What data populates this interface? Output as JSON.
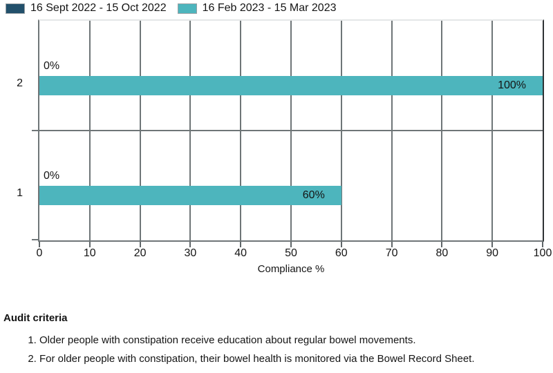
{
  "chart_data": {
    "type": "bar",
    "orientation": "horizontal",
    "categories": [
      "2",
      "1"
    ],
    "series": [
      {
        "name": "16 Sept 2022 - 15 Oct 2022",
        "color": "#22506b",
        "values": [
          0,
          0
        ],
        "labels": [
          "0%",
          "0%"
        ]
      },
      {
        "name": "16 Feb 2023 - 15 Mar 2023",
        "color": "#4db5bd",
        "values": [
          100,
          60
        ],
        "labels": [
          "100%",
          "60%"
        ]
      }
    ],
    "xlabel": "Compliance %",
    "xlim": [
      0,
      100
    ],
    "xticks": [
      0,
      10,
      20,
      30,
      40,
      50,
      60,
      70,
      80,
      90,
      100
    ],
    "legend_position": "top-left",
    "grid": "vertical-major"
  },
  "colors": {
    "grid": "#6e7577",
    "axis": "#6e7577",
    "frame_right": "#2e3133",
    "frame_top": "#e4e6e7",
    "tick": "#5f6568",
    "text": "#141414"
  },
  "audit": {
    "heading": "Audit criteria",
    "items": [
      "Older people with constipation receive education about regular bowel movements.",
      "For older people with constipation, their bowel health is monitored via the Bowel Record Sheet."
    ]
  }
}
